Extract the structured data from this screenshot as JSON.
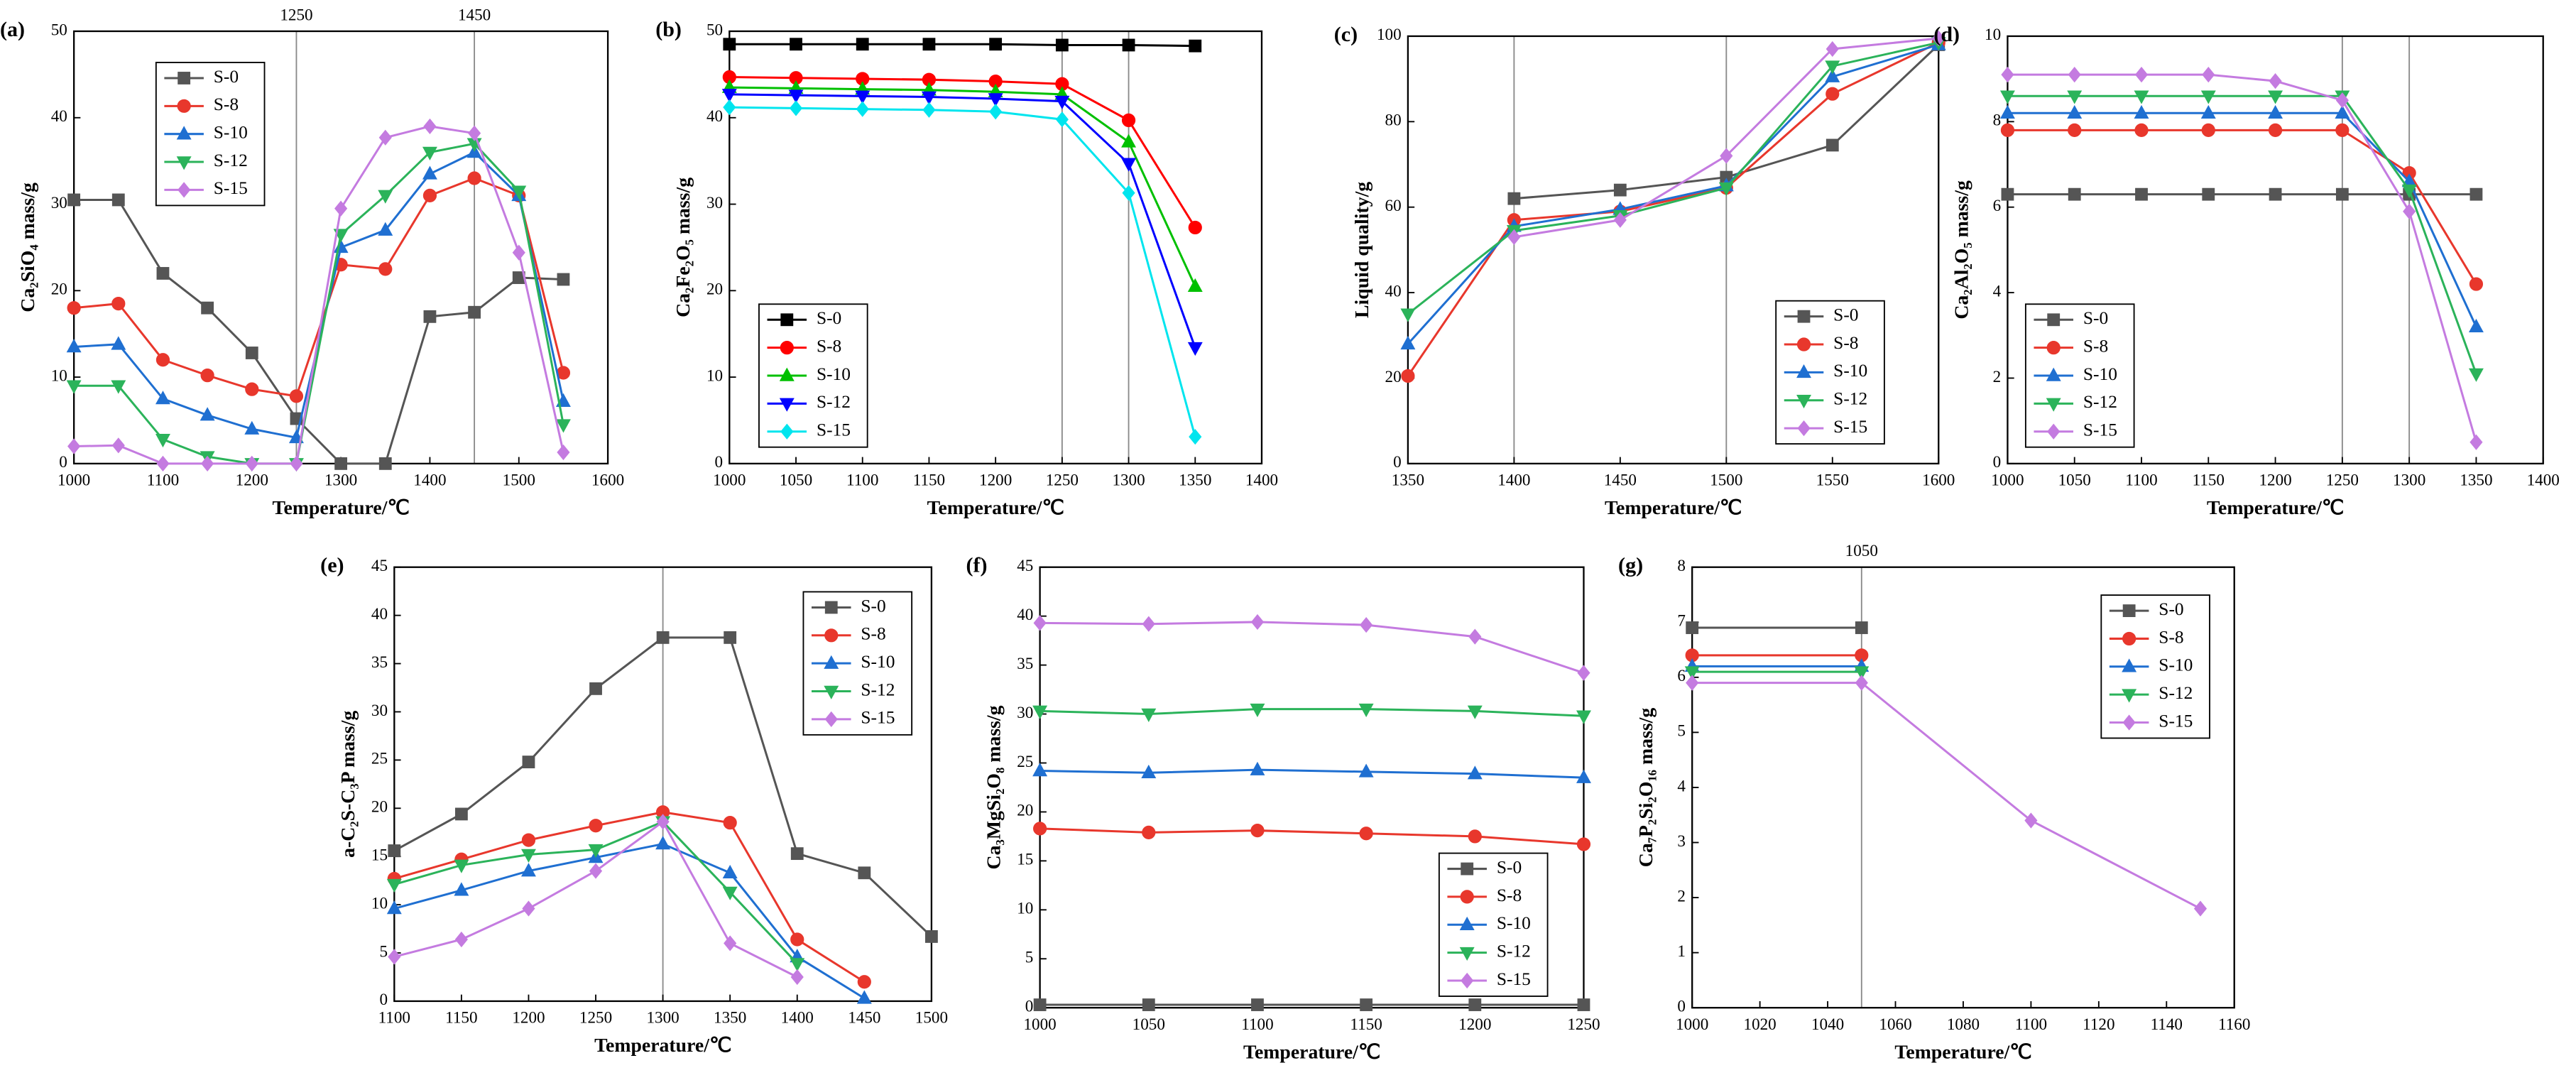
{
  "chart_data": [
    {
      "type": "line",
      "panel": "(a)",
      "xlabel": "Temperature/℃",
      "ylabel": "Ca₂SiO₄ mass/g",
      "x": [
        1000,
        1050,
        1100,
        1150,
        1200,
        1250,
        1300,
        1350,
        1400,
        1450,
        1500,
        1550
      ],
      "xlim": [
        1000,
        1600
      ],
      "xticks": [
        1000,
        1100,
        1200,
        1300,
        1400,
        1500,
        1600
      ],
      "ylim": [
        0,
        50
      ],
      "yticks": [
        0,
        10,
        20,
        30,
        40,
        50
      ],
      "vlines": [
        1250,
        1450
      ],
      "vline_labels": true,
      "legend": "upper left",
      "series": [
        {
          "name": "S-0",
          "color": "#555555",
          "marker": "square",
          "values": [
            30.5,
            30.5,
            22,
            18,
            12.8,
            5.2,
            0,
            0,
            17,
            17.5,
            21.5,
            21.3
          ]
        },
        {
          "name": "S-8",
          "color": "#e8372c",
          "marker": "circle",
          "values": [
            18,
            18.5,
            12,
            10.2,
            8.6,
            7.8,
            23,
            22.5,
            31,
            33,
            31,
            10.5
          ]
        },
        {
          "name": "S-10",
          "color": "#1f6fd1",
          "marker": "triangle-up",
          "values": [
            13.5,
            13.8,
            7.5,
            5.6,
            4,
            3,
            25,
            27,
            33.5,
            36,
            31,
            7.2
          ]
        },
        {
          "name": "S-12",
          "color": "#2bb35a",
          "marker": "triangle-down",
          "values": [
            9,
            9,
            2.8,
            0.8,
            0,
            0,
            26.5,
            31,
            36,
            37,
            31.5,
            4.5
          ]
        },
        {
          "name": "S-15",
          "color": "#c47be0",
          "marker": "diamond",
          "values": [
            2,
            2.1,
            0,
            0,
            0,
            0,
            29.5,
            37.7,
            39,
            38.2,
            24.4,
            1.3
          ]
        }
      ]
    },
    {
      "type": "line",
      "panel": "(b)",
      "xlabel": "Temperature/℃",
      "ylabel": "Ca₂Fe₂O₅ mass/g",
      "x": [
        1000,
        1050,
        1100,
        1150,
        1200,
        1250,
        1300,
        1350
      ],
      "xlim": [
        1000,
        1400
      ],
      "xticks": [
        1000,
        1050,
        1100,
        1150,
        1200,
        1250,
        1300,
        1350,
        1400
      ],
      "ylim": [
        0,
        50
      ],
      "yticks": [
        0,
        10,
        20,
        30,
        40,
        50
      ],
      "vlines": [
        1250,
        1300
      ],
      "vline_labels": false,
      "legend": "lower left",
      "series": [
        {
          "name": "S-0",
          "color": "#000000",
          "marker": "square",
          "values": [
            48.5,
            48.5,
            48.5,
            48.5,
            48.5,
            48.4,
            48.4,
            48.3
          ]
        },
        {
          "name": "S-8",
          "color": "#ff0000",
          "marker": "circle",
          "values": [
            44.7,
            44.6,
            44.5,
            44.4,
            44.2,
            43.9,
            39.7,
            27.3
          ]
        },
        {
          "name": "S-10",
          "color": "#00c000",
          "marker": "triangle-up",
          "values": [
            43.5,
            43.4,
            43.3,
            43.2,
            43.0,
            42.7,
            37.2,
            20.5
          ]
        },
        {
          "name": "S-12",
          "color": "#0000ff",
          "marker": "triangle-down",
          "values": [
            42.7,
            42.6,
            42.5,
            42.4,
            42.2,
            41.9,
            34.7,
            13.4
          ]
        },
        {
          "name": "S-15",
          "color": "#00e5ee",
          "marker": "diamond",
          "values": [
            41.2,
            41.1,
            41.0,
            40.9,
            40.7,
            39.8,
            31.3,
            3.1
          ]
        }
      ]
    },
    {
      "type": "line",
      "panel": "(c)",
      "xlabel": "Temperature/℃",
      "ylabel": "Liquid quality/g",
      "x": [
        1350,
        1400,
        1450,
        1500,
        1550,
        1600
      ],
      "xlim": [
        1350,
        1600
      ],
      "xticks": [
        1350,
        1400,
        1450,
        1500,
        1550,
        1600
      ],
      "ylim": [
        0,
        100
      ],
      "yticks": [
        0,
        20,
        40,
        60,
        80,
        100
      ],
      "vlines": [
        1400,
        1500
      ],
      "vline_labels": false,
      "legend": "lower right",
      "series": [
        {
          "name": "S-0",
          "color": "#555555",
          "marker": "square",
          "values": [
            null,
            62,
            64,
            67,
            74.5,
            98
          ]
        },
        {
          "name": "S-8",
          "color": "#e8372c",
          "marker": "circle",
          "values": [
            20.5,
            57,
            59,
            64.5,
            86.5,
            98.5
          ]
        },
        {
          "name": "S-10",
          "color": "#1f6fd1",
          "marker": "triangle-up",
          "values": [
            28,
            55.5,
            59.5,
            65,
            90.5,
            98
          ]
        },
        {
          "name": "S-12",
          "color": "#2bb35a",
          "marker": "triangle-down",
          "values": [
            35,
            54.5,
            58,
            64.5,
            93,
            98.5
          ]
        },
        {
          "name": "S-15",
          "color": "#c47be0",
          "marker": "diamond",
          "values": [
            null,
            53,
            57,
            72,
            97,
            99.5
          ]
        }
      ]
    },
    {
      "type": "line",
      "panel": "(d)",
      "xlabel": "Temperature/℃",
      "ylabel": "Ca₂Al₂O₅ mass/g",
      "x": [
        1000,
        1050,
        1100,
        1150,
        1200,
        1250,
        1300,
        1350
      ],
      "xlim": [
        1000,
        1400
      ],
      "xticks": [
        1000,
        1050,
        1100,
        1150,
        1200,
        1250,
        1300,
        1350,
        1400
      ],
      "ylim": [
        0,
        10
      ],
      "yticks": [
        0,
        2,
        4,
        6,
        8,
        10
      ],
      "vlines": [
        1250,
        1300
      ],
      "vline_labels": false,
      "legend": "lower left",
      "series": [
        {
          "name": "S-0",
          "color": "#555555",
          "marker": "square",
          "values": [
            6.3,
            6.3,
            6.3,
            6.3,
            6.3,
            6.3,
            6.3,
            6.3
          ]
        },
        {
          "name": "S-8",
          "color": "#e8372c",
          "marker": "circle",
          "values": [
            7.8,
            7.8,
            7.8,
            7.8,
            7.8,
            7.8,
            6.8,
            4.2
          ]
        },
        {
          "name": "S-10",
          "color": "#1f6fd1",
          "marker": "triangle-up",
          "values": [
            8.2,
            8.2,
            8.2,
            8.2,
            8.2,
            8.2,
            6.6,
            3.2
          ]
        },
        {
          "name": "S-12",
          "color": "#2bb35a",
          "marker": "triangle-down",
          "values": [
            8.6,
            8.6,
            8.6,
            8.6,
            8.6,
            8.6,
            6.4,
            2.1
          ]
        },
        {
          "name": "S-15",
          "color": "#c47be0",
          "marker": "diamond",
          "values": [
            9.1,
            9.1,
            9.1,
            9.1,
            8.95,
            8.5,
            5.9,
            0.5
          ]
        }
      ]
    },
    {
      "type": "line",
      "panel": "(e)",
      "xlabel": "Temperature/℃",
      "ylabel": "a-C₂S-C₃P mass/g",
      "x": [
        1100,
        1150,
        1200,
        1250,
        1300,
        1350,
        1400,
        1450,
        1500
      ],
      "xlim": [
        1100,
        1500
      ],
      "xticks": [
        1100,
        1150,
        1200,
        1250,
        1300,
        1350,
        1400,
        1450,
        1500
      ],
      "ylim": [
        0,
        45
      ],
      "yticks": [
        0,
        5,
        10,
        15,
        20,
        25,
        30,
        35,
        40,
        45
      ],
      "vlines": [
        1300
      ],
      "vline_labels": false,
      "legend": "upper right",
      "series": [
        {
          "name": "S-0",
          "color": "#555555",
          "marker": "square",
          "values": [
            15.6,
            19.4,
            24.8,
            32.4,
            37.7,
            37.7,
            15.3,
            13.3,
            6.7
          ]
        },
        {
          "name": "S-8",
          "color": "#e8372c",
          "marker": "circle",
          "values": [
            12.7,
            14.7,
            16.7,
            18.2,
            19.6,
            18.5,
            6.4,
            2,
            null
          ]
        },
        {
          "name": "S-10",
          "color": "#1f6fd1",
          "marker": "triangle-up",
          "values": [
            9.6,
            11.5,
            13.5,
            14.9,
            16.3,
            13.3,
            4.6,
            0.3,
            null
          ]
        },
        {
          "name": "S-12",
          "color": "#2bb35a",
          "marker": "triangle-down",
          "values": [
            12.1,
            14.1,
            15.2,
            15.7,
            18.6,
            11.3,
            3.9,
            null,
            null
          ]
        },
        {
          "name": "S-15",
          "color": "#c47be0",
          "marker": "diamond",
          "values": [
            4.6,
            6.4,
            9.6,
            13.5,
            18.6,
            6.0,
            2.5,
            null,
            null
          ]
        }
      ]
    },
    {
      "type": "line",
      "panel": "(f)",
      "xlabel": "Temperature/℃",
      "ylabel": "Ca₃MgSi₂O₈ mass/g",
      "x": [
        1000,
        1050,
        1100,
        1150,
        1200,
        1250
      ],
      "xlim": [
        1000,
        1250
      ],
      "xticks": [
        1000,
        1050,
        1100,
        1150,
        1200,
        1250
      ],
      "ylim": [
        0,
        45
      ],
      "yticks": [
        0,
        5,
        10,
        15,
        20,
        25,
        30,
        35,
        40,
        45
      ],
      "vlines": [],
      "vline_labels": false,
      "legend": "lower right",
      "series": [
        {
          "name": "S-0",
          "color": "#555555",
          "marker": "square",
          "values": [
            0.3,
            0.3,
            0.3,
            0.3,
            0.3,
            0.3
          ]
        },
        {
          "name": "S-8",
          "color": "#e8372c",
          "marker": "circle",
          "values": [
            18.3,
            17.9,
            18.1,
            17.8,
            17.5,
            16.7
          ]
        },
        {
          "name": "S-10",
          "color": "#1f6fd1",
          "marker": "triangle-up",
          "values": [
            24.2,
            24,
            24.3,
            24.1,
            23.9,
            23.5
          ]
        },
        {
          "name": "S-12",
          "color": "#2bb35a",
          "marker": "triangle-down",
          "values": [
            30.3,
            30,
            30.5,
            30.5,
            30.3,
            29.8
          ]
        },
        {
          "name": "S-15",
          "color": "#c47be0",
          "marker": "diamond",
          "values": [
            39.3,
            39.2,
            39.4,
            39.1,
            37.9,
            34.2
          ]
        }
      ]
    },
    {
      "type": "line",
      "panel": "(g)",
      "xlabel": "Temperature/℃",
      "ylabel": "Ca₇P₂Si₂O₁₆ mass/g",
      "x": [
        1000,
        1050,
        1100,
        1150
      ],
      "xlim": [
        1000,
        1160
      ],
      "xticks": [
        1000,
        1020,
        1040,
        1060,
        1080,
        1100,
        1120,
        1140,
        1160
      ],
      "ylim": [
        0,
        8
      ],
      "yticks": [
        0,
        1,
        2,
        3,
        4,
        5,
        6,
        7,
        8
      ],
      "vlines": [
        1050
      ],
      "vline_labels": true,
      "legend": "upper right",
      "series": [
        {
          "name": "S-0",
          "color": "#555555",
          "marker": "square",
          "values": [
            6.9,
            6.9,
            null,
            null
          ]
        },
        {
          "name": "S-8",
          "color": "#e8372c",
          "marker": "circle",
          "values": [
            6.4,
            6.4,
            null,
            null
          ]
        },
        {
          "name": "S-10",
          "color": "#1f6fd1",
          "marker": "triangle-up",
          "values": [
            6.2,
            6.2,
            null,
            null
          ]
        },
        {
          "name": "S-12",
          "color": "#2bb35a",
          "marker": "triangle-down",
          "values": [
            6.1,
            6.1,
            null,
            null
          ]
        },
        {
          "name": "S-15",
          "color": "#c47be0",
          "marker": "diamond",
          "values": [
            5.9,
            5.9,
            3.4,
            1.8
          ]
        }
      ]
    }
  ]
}
